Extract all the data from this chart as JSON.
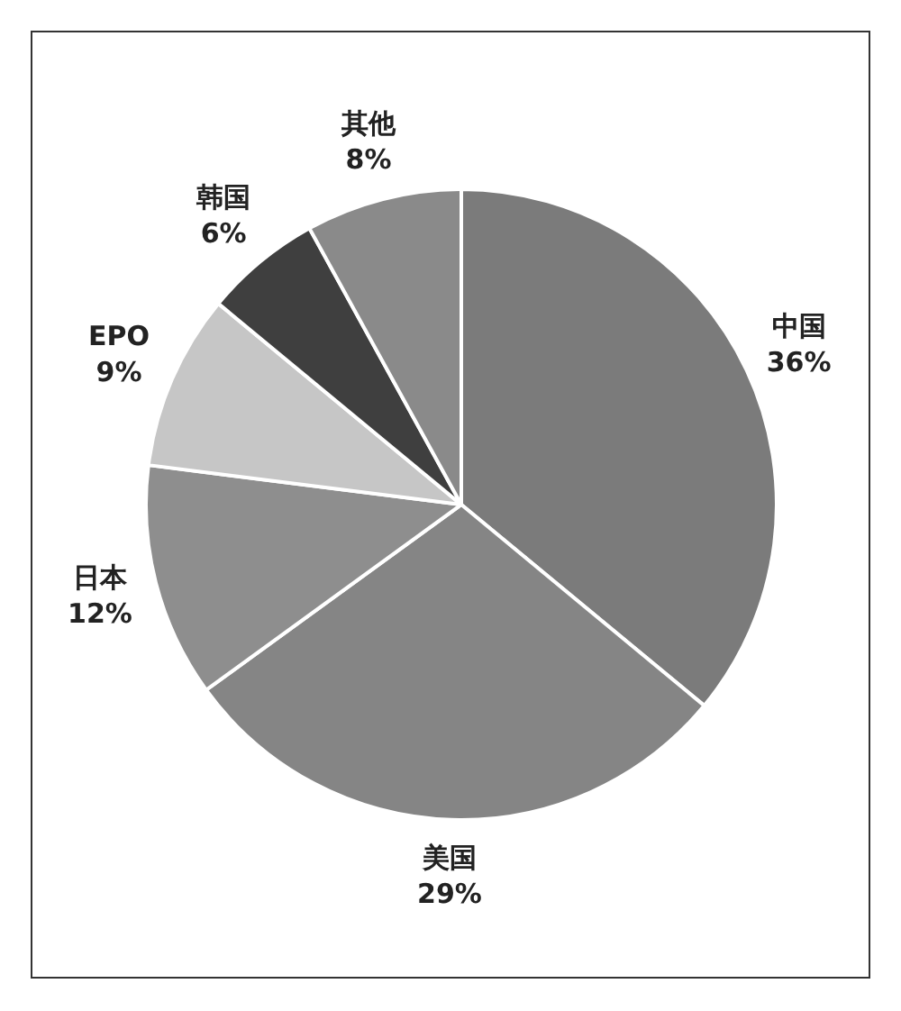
{
  "chart_data": {
    "type": "pie",
    "categories": [
      "中国",
      "美国",
      "日本",
      "EPO",
      "韩国",
      "其他"
    ],
    "values": [
      36,
      29,
      12,
      9,
      6,
      8
    ],
    "value_labels": [
      "36%",
      "29%",
      "12%",
      "9%",
      "6%",
      "8%"
    ],
    "colors": [
      "#7b7b7b",
      "#858585",
      "#8e8e8e",
      "#c6c6c6",
      "#3f3f3f",
      "#8a8a8a"
    ],
    "legend": false
  }
}
